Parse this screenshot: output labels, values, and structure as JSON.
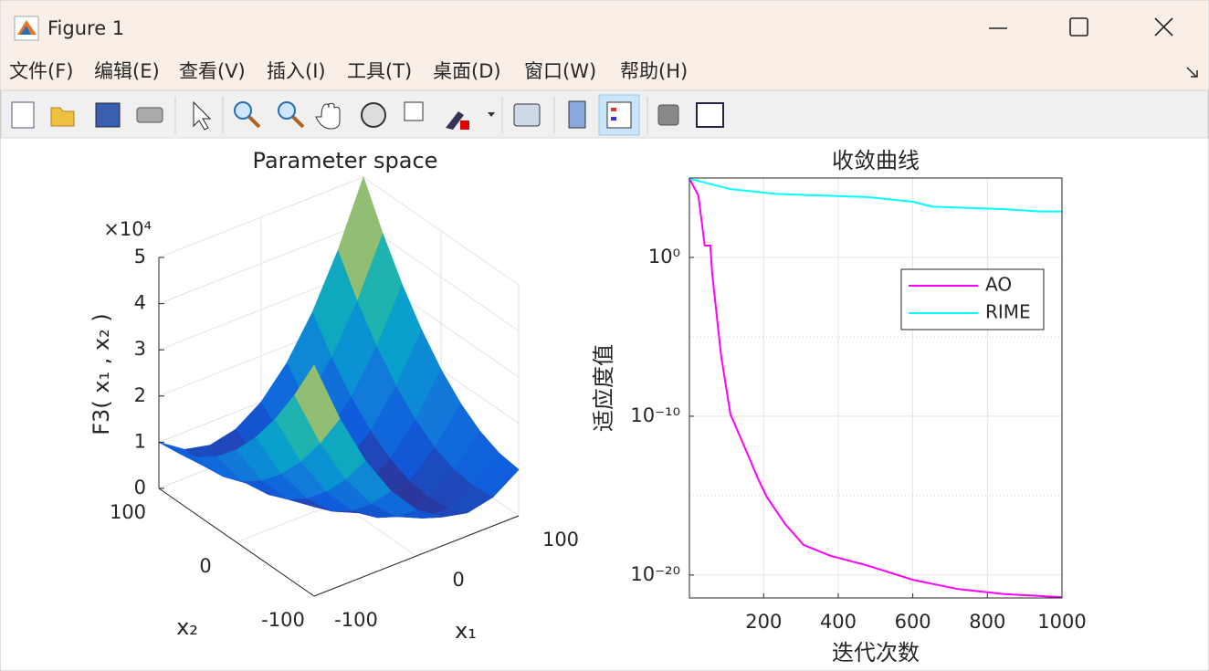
{
  "window": {
    "title": "Figure 1"
  },
  "menu": [
    "文件(F)",
    "编辑(E)",
    "查看(V)",
    "插入(I)",
    "工具(T)",
    "桌面(D)",
    "窗口(W)",
    "帮助(H)"
  ],
  "chart_data": [
    {
      "type": "surface",
      "title": "Parameter space",
      "xlabel": "x₁",
      "ylabel": "x₂",
      "zlabel": "F3( x₁ , x₂ )",
      "x": [
        -100,
        -75,
        -50,
        -25,
        0,
        25,
        50,
        75,
        100
      ],
      "y": [
        -100,
        -75,
        -50,
        -25,
        0,
        25,
        50,
        75,
        100
      ],
      "z": [
        [
          50000,
          36250,
          25000,
          16250,
          10000,
          6250,
          5000,
          6250,
          10000
        ],
        [
          40625,
          28125,
          18125,
          10625,
          5625,
          3125,
          3125,
          5625,
          10625
        ],
        [
          32500,
          21250,
          12500,
          6250,
          2500,
          1250,
          2500,
          6250,
          12500
        ],
        [
          25625,
          15625,
          8125,
          3125,
          625,
          625,
          3125,
          8125,
          15625
        ],
        [
          20000,
          11250,
          5000,
          1250,
          0,
          1250,
          5000,
          11250,
          20000
        ],
        [
          15625,
          8125,
          3125,
          625,
          625,
          3125,
          8125,
          15625,
          25625
        ],
        [
          12500,
          6250,
          2500,
          1250,
          2500,
          6250,
          12500,
          21250,
          32500
        ],
        [
          10625,
          5625,
          3125,
          3125,
          5625,
          10625,
          18125,
          28125,
          40625
        ],
        [
          10000,
          6250,
          5000,
          6250,
          10000,
          16250,
          25000,
          36250,
          50000
        ]
      ],
      "xlim": [
        -100,
        100
      ],
      "ylim": [
        -100,
        100
      ],
      "zlim": [
        0,
        50000
      ],
      "xticks": [
        -100,
        0,
        100
      ],
      "yticks": [
        -100,
        0,
        100
      ],
      "zticks": [
        0,
        {
          "value": 10000,
          "label": "1"
        },
        {
          "value": 20000,
          "label": "2"
        },
        {
          "value": 30000,
          "label": "3"
        },
        {
          "value": 40000,
          "label": "4"
        },
        {
          "value": 50000,
          "label": "5"
        }
      ],
      "zexponent": "×10⁴",
      "colormap": "parula",
      "grid": true
    },
    {
      "type": "line",
      "title": "收敛曲线",
      "xlabel": "迭代次数",
      "ylabel": "适应度值",
      "xlim": [
        1,
        1000
      ],
      "ylim": [
        3.6e-22,
        100000
      ],
      "log_y": true,
      "grid": true,
      "legend": "northeast",
      "xticks": [
        200,
        400,
        600,
        800,
        1000
      ],
      "yticks": [
        {
          "value": 1e-20,
          "label": "10⁻²⁰"
        },
        {
          "value": 1e-10,
          "label": "10⁻¹⁰"
        },
        {
          "value": 1,
          "label": "10⁰"
        }
      ],
      "yminorticks": [
        1e-15,
        1e-05
      ],
      "series": [
        {
          "name": "AO",
          "color": "#ff00ff",
          "x": [
            1,
            25,
            42,
            57,
            62,
            86,
            111,
            148,
            184,
            209,
            258,
            307,
            380,
            478,
            600,
            722,
            845,
            1000
          ],
          "values": [
            91000,
            7900,
            5.6,
            5.6,
            0.1,
            6.3e-07,
            1.3e-10,
            1.3e-12,
            1.3e-14,
            7.9e-16,
            1.6e-17,
            7.9e-19,
            1.6e-19,
            4e-20,
            5e-21,
            1.3e-21,
            6.3e-22,
            4e-22
          ]
        },
        {
          "name": "RIME",
          "color": "#00ffff",
          "x": [
            1,
            111,
            233,
            355,
            478,
            600,
            650,
            845,
            942,
            1000
          ],
          "values": [
            91000,
            20000,
            10000,
            7900,
            6300,
            3200,
            1600,
            1100,
            790,
            790
          ]
        }
      ]
    }
  ]
}
